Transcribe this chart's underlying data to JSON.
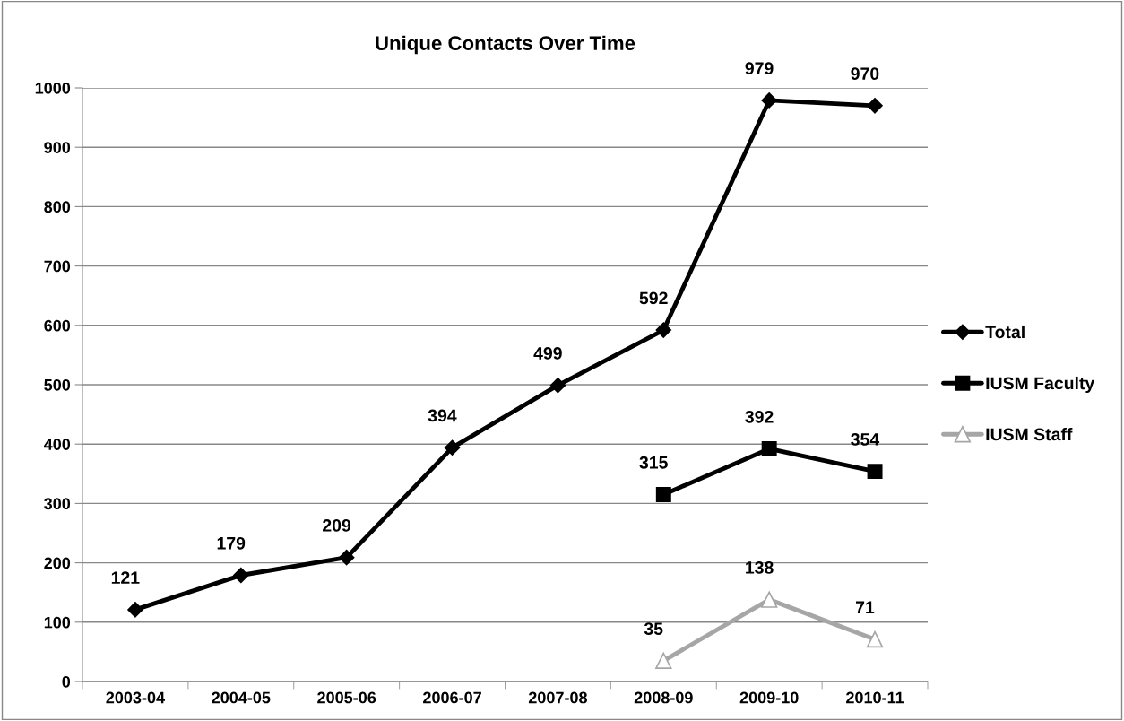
{
  "chart_data": {
    "type": "line",
    "title": "Unique Contacts Over Time",
    "categories": [
      "2003-04",
      "2004-05",
      "2005-06",
      "2006-07",
      "2007-08",
      "2008-09",
      "2009-10",
      "2010-11"
    ],
    "series": [
      {
        "name": "Total",
        "color": "#000000",
        "marker": "diamond",
        "values": [
          121,
          179,
          209,
          394,
          499,
          592,
          979,
          970
        ]
      },
      {
        "name": "IUSM Faculty",
        "color": "#000000",
        "marker": "square",
        "values": [
          null,
          null,
          null,
          null,
          null,
          315,
          392,
          354
        ]
      },
      {
        "name": "IUSM Staff",
        "color": "#a6a6a6",
        "marker": "triangle",
        "values": [
          null,
          null,
          null,
          null,
          null,
          35,
          138,
          71
        ]
      }
    ],
    "ylim": [
      0,
      1000
    ],
    "yticks": [
      0,
      100,
      200,
      300,
      400,
      500,
      600,
      700,
      800,
      900,
      1000
    ],
    "grid": "y",
    "legend": "right",
    "data_labels": true
  }
}
